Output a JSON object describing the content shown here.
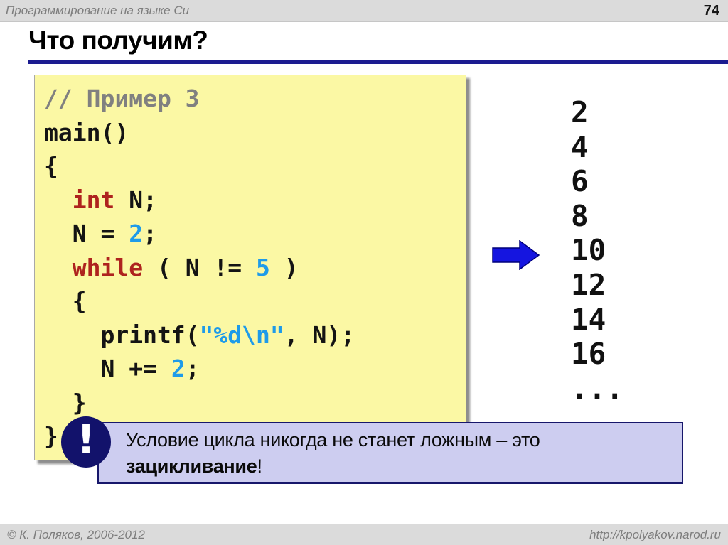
{
  "header": {
    "course_title": "Программирование на языке Си",
    "page_number": "74"
  },
  "slide": {
    "title": "Что получим?"
  },
  "code_box": {
    "lines": [
      [
        {
          "t": "// Пример 3",
          "c": "comment"
        }
      ],
      [
        {
          "t": "main()",
          "c": "plain"
        }
      ],
      [
        {
          "t": "{",
          "c": "plain"
        }
      ],
      [
        {
          "t": "  ",
          "c": "plain"
        },
        {
          "t": "int",
          "c": "keyword"
        },
        {
          "t": " N;",
          "c": "plain"
        }
      ],
      [
        {
          "t": "  N = ",
          "c": "plain"
        },
        {
          "t": "2",
          "c": "value"
        },
        {
          "t": ";",
          "c": "plain"
        }
      ],
      [
        {
          "t": "  ",
          "c": "plain"
        },
        {
          "t": "while",
          "c": "keyword"
        },
        {
          "t": " ( N != ",
          "c": "plain"
        },
        {
          "t": "5",
          "c": "value"
        },
        {
          "t": " )",
          "c": "plain"
        }
      ],
      [
        {
          "t": "  {",
          "c": "plain"
        }
      ],
      [
        {
          "t": "    printf(",
          "c": "plain"
        },
        {
          "t": "\"%d\\n\"",
          "c": "value"
        },
        {
          "t": ", N);",
          "c": "plain"
        }
      ],
      [
        {
          "t": "    N += ",
          "c": "plain"
        },
        {
          "t": "2",
          "c": "value"
        },
        {
          "t": ";",
          "c": "plain"
        }
      ],
      [
        {
          "t": "  }",
          "c": "plain"
        }
      ],
      [
        {
          "t": "}",
          "c": "plain"
        }
      ]
    ]
  },
  "output": {
    "values": [
      "2",
      "4",
      "6",
      "8",
      "10",
      "12",
      "14",
      "16",
      "..."
    ]
  },
  "arrow": {
    "icon": "right-arrow",
    "fill": "#1515e0",
    "stroke": "#00007a"
  },
  "callout": {
    "icon": "exclamation",
    "exclamation_glyph": "!",
    "line1": "Условие цикла никогда не станет ложным – это",
    "bold_word": "зацикливание",
    "suffix": "!"
  },
  "footer": {
    "copyright": "© К. Поляков, 2006-2012",
    "url": "http://kpolyakov.narod.ru"
  },
  "colors": {
    "code_box_bg": "#fbf8a4",
    "keyword_red": "#ae231e",
    "value_blue": "#1e9be9",
    "comment_gray": "#808080",
    "title_underline": "#1b1b90",
    "callout_bg": "#cdcdf0",
    "callout_border": "#17176b",
    "icon_navy": "#12126b",
    "bar_gray": "#dbdbdb"
  }
}
